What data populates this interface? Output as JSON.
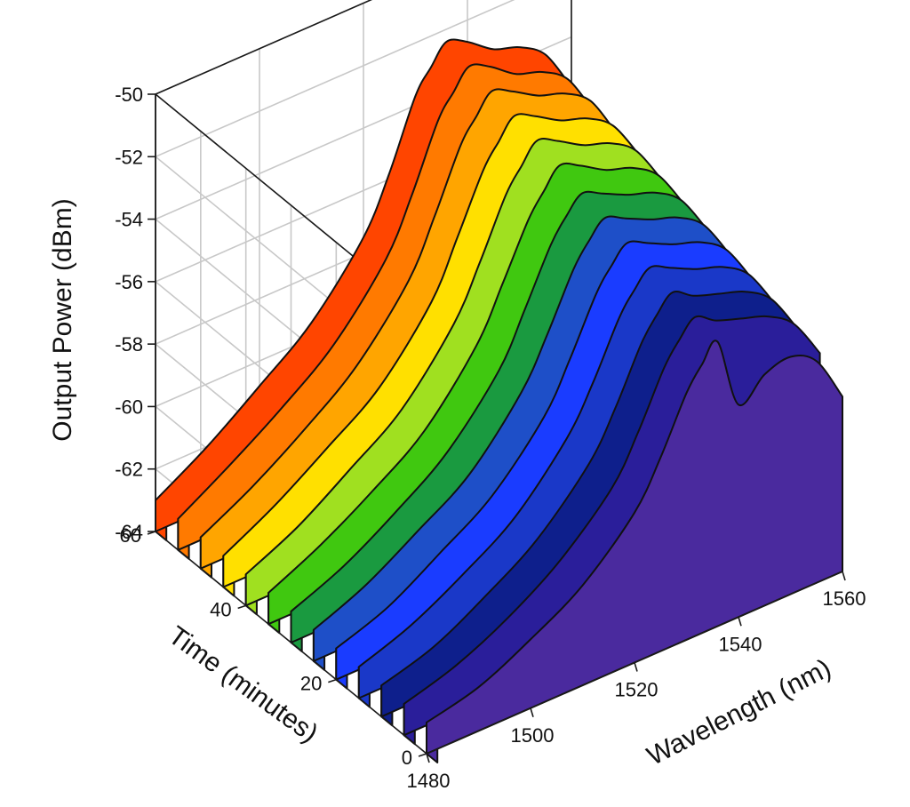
{
  "chart_data": {
    "type": "waterfall-3d",
    "title": "",
    "xlabel": "Wavelength (nm)",
    "ylabel": "Time (minutes)",
    "zlabel": "Output Power (dBm)",
    "xlim": [
      1480,
      1560
    ],
    "ylim": [
      0,
      60
    ],
    "zlim": [
      -64,
      -50
    ],
    "x_ticks": [
      "1480",
      "1500",
      "1520",
      "1540",
      "1560"
    ],
    "y_ticks": [
      "0",
      "20",
      "40",
      "60"
    ],
    "z_ticks": [
      "-50",
      "-52",
      "-54",
      "-56",
      "-58",
      "-60",
      "-62",
      "-64"
    ],
    "grid": true,
    "wavelengths": [
      1480,
      1490,
      1500,
      1510,
      1520,
      1525,
      1530,
      1533,
      1536,
      1540,
      1545,
      1550,
      1555,
      1560
    ],
    "series": [
      {
        "time": 60,
        "color": "#ff4500",
        "values": [
          -63.0,
          -62.0,
          -60.8,
          -59.5,
          -57.5,
          -55.8,
          -53.7,
          -53.0,
          -52.4,
          -52.7,
          -53.3,
          -53.6,
          -54.2,
          -55.6
        ]
      },
      {
        "time": 55,
        "color": "#ff7a00",
        "values": [
          -63.0,
          -62.0,
          -60.9,
          -59.6,
          -57.6,
          -55.9,
          -53.9,
          -53.2,
          -52.6,
          -52.9,
          -53.5,
          -53.8,
          -54.4,
          -55.8
        ]
      },
      {
        "time": 50,
        "color": "#ffa500",
        "values": [
          -63.0,
          -62.1,
          -61.0,
          -59.7,
          -57.7,
          -56.0,
          -54.1,
          -53.4,
          -52.8,
          -53.1,
          -53.6,
          -53.9,
          -54.5,
          -55.9
        ]
      },
      {
        "time": 45,
        "color": "#ffe000",
        "values": [
          -63.0,
          -62.1,
          -61.0,
          -59.8,
          -57.8,
          -56.1,
          -54.3,
          -53.6,
          -53.0,
          -53.3,
          -53.8,
          -54.1,
          -54.7,
          -56.0
        ]
      },
      {
        "time": 40,
        "color": "#a0e020",
        "values": [
          -63.0,
          -62.2,
          -61.1,
          -59.9,
          -57.9,
          -56.3,
          -54.5,
          -53.8,
          -53.2,
          -53.5,
          -54.0,
          -54.3,
          -54.9,
          -56.2
        ]
      },
      {
        "time": 35,
        "color": "#40c810",
        "values": [
          -63.0,
          -62.2,
          -61.2,
          -60.0,
          -58.0,
          -56.4,
          -54.7,
          -54.0,
          -53.4,
          -53.7,
          -54.2,
          -54.5,
          -55.1,
          -56.4
        ]
      },
      {
        "time": 30,
        "color": "#1a9a40",
        "values": [
          -63.0,
          -62.3,
          -61.3,
          -60.1,
          -58.2,
          -56.6,
          -54.9,
          -54.2,
          -53.7,
          -54.0,
          -54.4,
          -54.7,
          -55.3,
          -56.6
        ]
      },
      {
        "time": 25,
        "color": "#1e4fc8",
        "values": [
          -63.0,
          -62.3,
          -61.3,
          -60.2,
          -58.3,
          -56.8,
          -55.1,
          -54.4,
          -53.9,
          -54.2,
          -54.6,
          -54.9,
          -55.5,
          -56.8
        ]
      },
      {
        "time": 20,
        "color": "#1a3cff",
        "values": [
          -63.0,
          -62.4,
          -61.4,
          -60.3,
          -58.5,
          -57.0,
          -55.3,
          -54.6,
          -54.1,
          -54.4,
          -54.8,
          -55.1,
          -55.7,
          -57.0
        ]
      },
      {
        "time": 15,
        "color": "#1a38c8",
        "values": [
          -63.0,
          -62.4,
          -61.5,
          -60.4,
          -58.6,
          -57.2,
          -55.5,
          -54.8,
          -54.3,
          -54.6,
          -55.0,
          -55.3,
          -55.9,
          -57.2
        ]
      },
      {
        "time": 10,
        "color": "#0e1f8c",
        "values": [
          -63.0,
          -62.5,
          -61.6,
          -60.5,
          -58.8,
          -57.4,
          -55.7,
          -55.0,
          -54.5,
          -54.9,
          -55.2,
          -55.5,
          -56.1,
          -57.4
        ]
      },
      {
        "time": 5,
        "color": "#2a1e9a",
        "values": [
          -63.0,
          -62.5,
          -61.7,
          -60.6,
          -59.0,
          -57.6,
          -55.9,
          -55.2,
          -54.7,
          -55.1,
          -55.4,
          -55.7,
          -56.3,
          -57.6
        ]
      },
      {
        "time": 0,
        "color": "#4a2a9e",
        "values": [
          -63.0,
          -62.6,
          -61.8,
          -60.8,
          -59.2,
          -57.8,
          -56.1,
          -55.4,
          -54.9,
          -57.2,
          -56.6,
          -56.4,
          -56.9,
          -58.4
        ]
      }
    ]
  }
}
